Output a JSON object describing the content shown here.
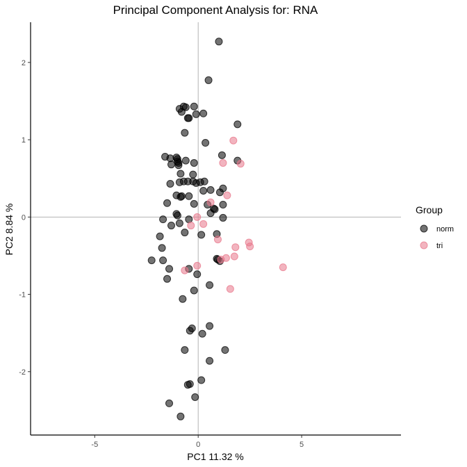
{
  "chart_data": {
    "type": "scatter",
    "title": "Principal Component Analysis for:  RNA",
    "xlabel": "PC1 11.32 %",
    "ylabel": "PC2 8.84 %",
    "xlim": [
      -8.1,
      9.8
    ],
    "ylim": [
      -2.82,
      2.52
    ],
    "x_ticks": [
      -5,
      0,
      5
    ],
    "y_ticks": [
      -2,
      -1,
      0,
      1,
      2
    ],
    "reference_lines": {
      "x": 0,
      "y": 0
    },
    "grid": false,
    "legend_position": "right",
    "legend_title": "Group",
    "series": [
      {
        "name": "norm",
        "color": "#000000",
        "points": [
          [
            1.0,
            2.27
          ],
          [
            0.5,
            1.77
          ],
          [
            -0.9,
            1.4
          ],
          [
            -0.7,
            1.43
          ],
          [
            -0.6,
            1.42
          ],
          [
            -0.8,
            1.36
          ],
          [
            -0.2,
            1.43
          ],
          [
            -0.1,
            1.33
          ],
          [
            0.25,
            1.34
          ],
          [
            -0.5,
            1.28
          ],
          [
            -0.45,
            1.28
          ],
          [
            1.9,
            1.2
          ],
          [
            -0.65,
            1.09
          ],
          [
            0.35,
            0.96
          ],
          [
            -1.6,
            0.78
          ],
          [
            -1.35,
            0.76
          ],
          [
            -1.05,
            0.77
          ],
          [
            -1.0,
            0.75
          ],
          [
            -1.0,
            0.72
          ],
          [
            -0.95,
            0.7
          ],
          [
            -0.6,
            0.73
          ],
          [
            -0.2,
            0.7
          ],
          [
            -1.3,
            0.68
          ],
          [
            -0.95,
            0.67
          ],
          [
            1.15,
            0.8
          ],
          [
            1.9,
            0.73
          ],
          [
            -0.85,
            0.56
          ],
          [
            -0.25,
            0.55
          ],
          [
            -0.9,
            0.45
          ],
          [
            -0.7,
            0.46
          ],
          [
            -0.5,
            0.46
          ],
          [
            -0.25,
            0.46
          ],
          [
            -0.1,
            0.44
          ],
          [
            0.1,
            0.45
          ],
          [
            0.3,
            0.46
          ],
          [
            -1.35,
            0.43
          ],
          [
            0.25,
            0.34
          ],
          [
            0.6,
            0.35
          ],
          [
            1.05,
            0.32
          ],
          [
            1.2,
            0.37
          ],
          [
            -1.05,
            0.28
          ],
          [
            -0.8,
            0.27
          ],
          [
            -0.85,
            0.26
          ],
          [
            -0.45,
            0.27
          ],
          [
            -1.5,
            0.18
          ],
          [
            -0.2,
            0.17
          ],
          [
            0.45,
            0.16
          ],
          [
            1.2,
            0.16
          ],
          [
            0.75,
            0.11
          ],
          [
            0.8,
            0.1
          ],
          [
            -1.05,
            0.04
          ],
          [
            -1.0,
            0.02
          ],
          [
            0.6,
            0.05
          ],
          [
            -1.7,
            -0.03
          ],
          [
            -0.9,
            -0.08
          ],
          [
            -0.45,
            -0.03
          ],
          [
            1.2,
            -0.01
          ],
          [
            0.15,
            -0.23
          ],
          [
            -1.3,
            -0.11
          ],
          [
            -1.85,
            -0.25
          ],
          [
            -0.65,
            -0.2
          ],
          [
            0.9,
            -0.22
          ],
          [
            -1.75,
            -0.4
          ],
          [
            -2.25,
            -0.56
          ],
          [
            -1.7,
            -0.56
          ],
          [
            -1.4,
            -0.67
          ],
          [
            -1.5,
            -0.8
          ],
          [
            -0.45,
            -0.67
          ],
          [
            -0.05,
            -0.74
          ],
          [
            0.55,
            -0.88
          ],
          [
            -0.2,
            -0.95
          ],
          [
            -0.75,
            -1.06
          ],
          [
            0.55,
            -1.41
          ],
          [
            -0.3,
            -1.44
          ],
          [
            -0.4,
            -1.47
          ],
          [
            0.2,
            -1.51
          ],
          [
            -0.65,
            -1.72
          ],
          [
            1.3,
            -1.72
          ],
          [
            0.55,
            -1.86
          ],
          [
            0.15,
            -2.11
          ],
          [
            -0.4,
            -2.16
          ],
          [
            -0.5,
            -2.17
          ],
          [
            -0.15,
            -2.33
          ],
          [
            -1.4,
            -2.41
          ],
          [
            -0.85,
            -2.58
          ],
          [
            0.9,
            -0.54
          ],
          [
            0.95,
            -0.55
          ],
          [
            1.05,
            -0.57
          ]
        ]
      },
      {
        "name": "tri",
        "color": "#e8768a",
        "points": [
          [
            1.7,
            0.99
          ],
          [
            1.2,
            0.7
          ],
          [
            2.05,
            0.69
          ],
          [
            1.4,
            0.28
          ],
          [
            0.6,
            0.19
          ],
          [
            -0.05,
            0.0
          ],
          [
            0.25,
            -0.09
          ],
          [
            -0.35,
            -0.11
          ],
          [
            0.95,
            -0.29
          ],
          [
            2.45,
            -0.33
          ],
          [
            2.5,
            -0.38
          ],
          [
            1.8,
            -0.39
          ],
          [
            1.35,
            -0.53
          ],
          [
            1.75,
            -0.51
          ],
          [
            1.1,
            -0.55
          ],
          [
            -0.65,
            -0.69
          ],
          [
            -0.05,
            -0.63
          ],
          [
            4.1,
            -0.65
          ],
          [
            1.55,
            -0.93
          ]
        ]
      }
    ]
  }
}
